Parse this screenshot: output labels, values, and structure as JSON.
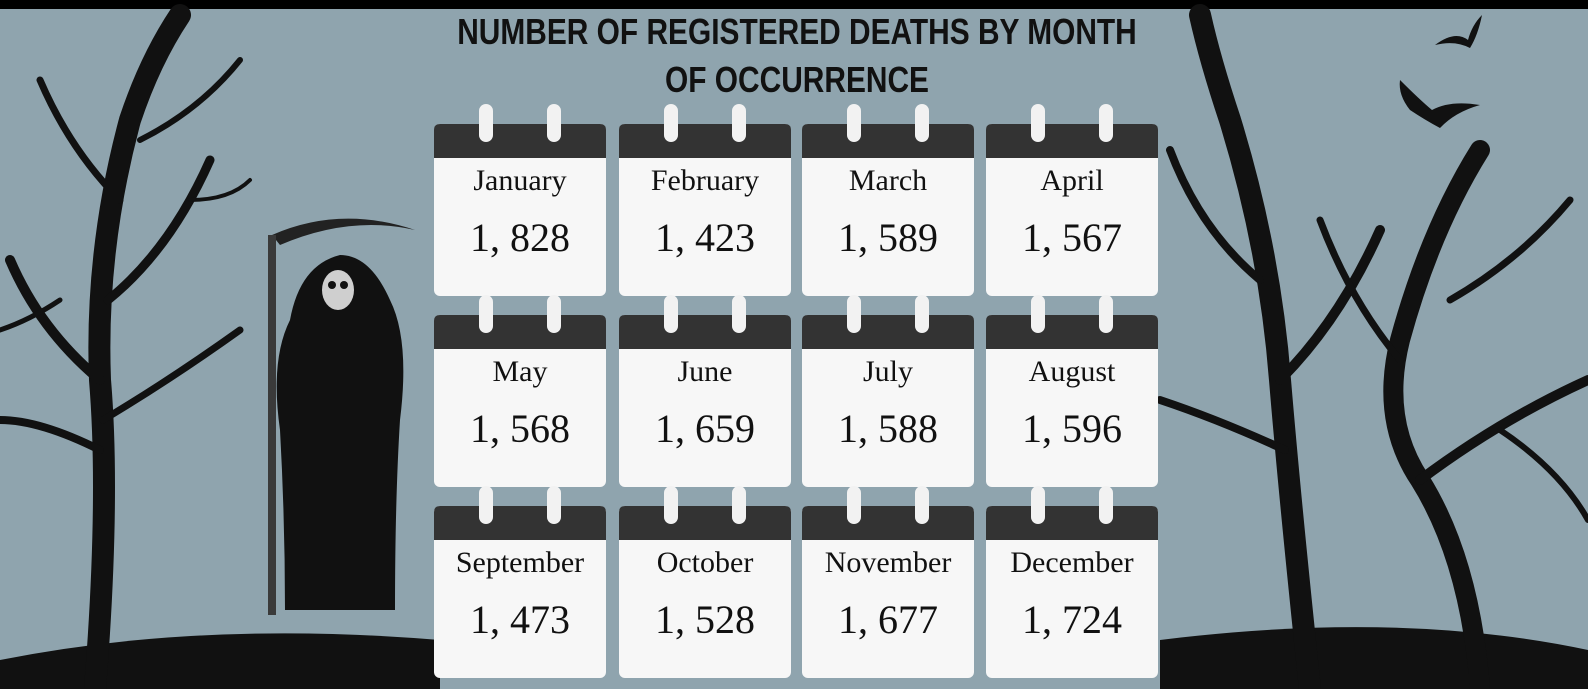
{
  "title": "NUMBER OF REGISTERED DEATHS BY MONTH OF OCCURRENCE",
  "months": [
    {
      "label": "January",
      "value": "1, 828"
    },
    {
      "label": "February",
      "value": "1, 423"
    },
    {
      "label": "March",
      "value": "1, 589"
    },
    {
      "label": "April",
      "value": "1, 567"
    },
    {
      "label": "May",
      "value": "1, 568"
    },
    {
      "label": "June",
      "value": "1, 659"
    },
    {
      "label": "July",
      "value": "1, 588"
    },
    {
      "label": "August",
      "value": "1, 596"
    },
    {
      "label": "September",
      "value": "1, 473"
    },
    {
      "label": "October",
      "value": "1, 528"
    },
    {
      "label": "November",
      "value": "1, 677"
    },
    {
      "label": "December",
      "value": "1, 724"
    }
  ]
}
